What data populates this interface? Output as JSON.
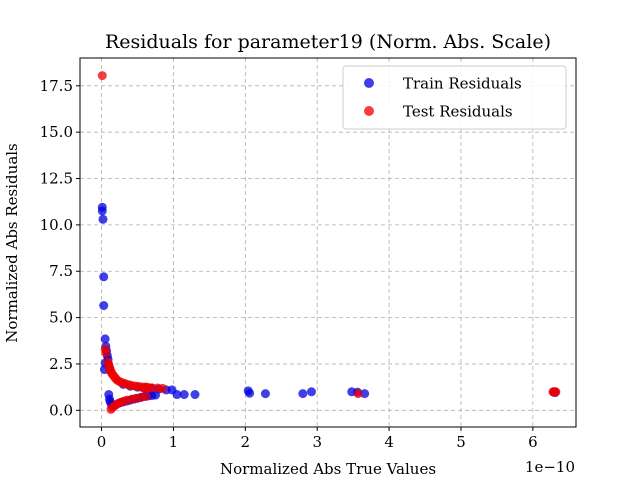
{
  "chart_data": {
    "type": "scatter",
    "title": "Residuals for parameter19 (Norm. Abs. Scale)",
    "xlabel": "Normalized Abs True Values",
    "ylabel": "Normalized Abs Residuals",
    "x_offset_label": "1e−10",
    "xlim": [
      -0.3,
      6.6
    ],
    "ylim": [
      -0.9,
      19.0
    ],
    "x_ticks": [
      0,
      1,
      2,
      3,
      4,
      5,
      6
    ],
    "x_tick_labels": [
      "0",
      "1",
      "2",
      "3",
      "4",
      "5",
      "6"
    ],
    "y_ticks": [
      0.0,
      2.5,
      5.0,
      7.5,
      10.0,
      12.5,
      15.0,
      17.5
    ],
    "y_tick_labels": [
      "0.0",
      "2.5",
      "5.0",
      "7.5",
      "10.0",
      "12.5",
      "15.0",
      "17.5"
    ],
    "grid": true,
    "legend_position": "top-right",
    "series": [
      {
        "name": "Train Residuals",
        "color": "#0000dd",
        "points": [
          [
            0.01,
            10.95
          ],
          [
            0.01,
            10.75
          ],
          [
            0.02,
            10.3
          ],
          [
            0.03,
            7.2
          ],
          [
            0.03,
            5.65
          ],
          [
            0.05,
            3.85
          ],
          [
            0.06,
            3.45
          ],
          [
            0.07,
            3.2
          ],
          [
            0.08,
            2.95
          ],
          [
            0.09,
            2.75
          ],
          [
            0.04,
            2.2
          ],
          [
            0.05,
            2.55
          ],
          [
            0.1,
            2.45
          ],
          [
            0.11,
            2.3
          ],
          [
            0.12,
            2.15
          ],
          [
            0.1,
            0.85
          ],
          [
            0.11,
            0.6
          ],
          [
            0.12,
            0.45
          ],
          [
            0.14,
            0.3
          ],
          [
            0.16,
            0.25
          ],
          [
            0.2,
            0.3
          ],
          [
            0.25,
            0.4
          ],
          [
            0.3,
            0.45
          ],
          [
            0.35,
            0.5
          ],
          [
            0.4,
            0.55
          ],
          [
            0.45,
            0.6
          ],
          [
            0.5,
            0.65
          ],
          [
            0.55,
            0.7
          ],
          [
            0.6,
            0.75
          ],
          [
            0.65,
            0.78
          ],
          [
            0.7,
            0.8
          ],
          [
            0.75,
            0.82
          ],
          [
            0.3,
            1.4
          ],
          [
            0.4,
            1.3
          ],
          [
            0.5,
            1.25
          ],
          [
            0.6,
            1.2
          ],
          [
            0.7,
            1.2
          ],
          [
            0.8,
            1.15
          ],
          [
            0.9,
            1.1
          ],
          [
            0.98,
            1.1
          ],
          [
            1.05,
            0.85
          ],
          [
            1.15,
            0.85
          ],
          [
            1.3,
            0.85
          ],
          [
            2.04,
            1.05
          ],
          [
            2.06,
            0.92
          ],
          [
            2.28,
            0.9
          ],
          [
            2.8,
            0.9
          ],
          [
            2.92,
            1.0
          ],
          [
            3.48,
            1.0
          ],
          [
            3.56,
            0.98
          ],
          [
            3.66,
            0.9
          ],
          [
            6.29,
            0.98
          ],
          [
            6.3,
            1.0
          ],
          [
            6.31,
            0.96
          ]
        ]
      },
      {
        "name": "Test Residuals",
        "color": "#ee0000",
        "points": [
          [
            0.01,
            18.05
          ],
          [
            0.05,
            3.3
          ],
          [
            0.06,
            3.1
          ],
          [
            0.09,
            2.6
          ],
          [
            0.1,
            2.45
          ],
          [
            0.11,
            2.3
          ],
          [
            0.12,
            2.2
          ],
          [
            0.13,
            2.1
          ],
          [
            0.14,
            2.0
          ],
          [
            0.16,
            1.9
          ],
          [
            0.18,
            1.8
          ],
          [
            0.2,
            1.7
          ],
          [
            0.22,
            1.62
          ],
          [
            0.25,
            1.55
          ],
          [
            0.28,
            1.5
          ],
          [
            0.32,
            1.45
          ],
          [
            0.36,
            1.4
          ],
          [
            0.4,
            1.36
          ],
          [
            0.45,
            1.32
          ],
          [
            0.5,
            1.3
          ],
          [
            0.55,
            1.27
          ],
          [
            0.6,
            1.25
          ],
          [
            0.65,
            1.23
          ],
          [
            0.7,
            1.21
          ],
          [
            0.78,
            1.2
          ],
          [
            0.85,
            1.18
          ],
          [
            0.13,
            0.05
          ],
          [
            0.15,
            0.15
          ],
          [
            0.18,
            0.25
          ],
          [
            0.22,
            0.35
          ],
          [
            0.26,
            0.42
          ],
          [
            0.3,
            0.48
          ],
          [
            0.35,
            0.55
          ],
          [
            0.42,
            0.6
          ],
          [
            0.48,
            0.65
          ],
          [
            0.55,
            0.7
          ],
          [
            0.62,
            0.75
          ],
          [
            0.58,
            1.2
          ],
          [
            0.62,
            1.25
          ],
          [
            3.57,
            0.9
          ],
          [
            6.28,
            1.0
          ],
          [
            6.3,
            1.0
          ],
          [
            6.32,
            1.0
          ]
        ]
      }
    ]
  }
}
